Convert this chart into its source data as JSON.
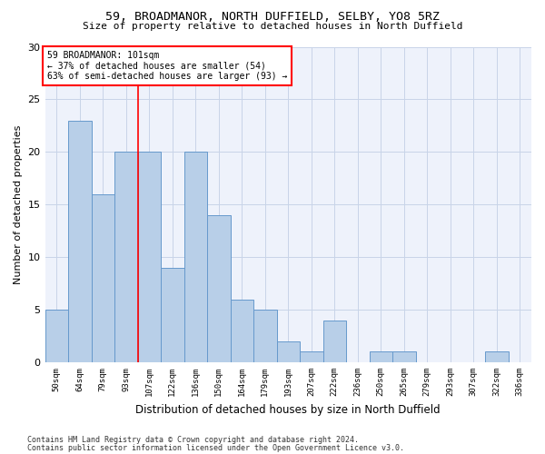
{
  "title1": "59, BROADMANOR, NORTH DUFFIELD, SELBY, YO8 5RZ",
  "title2": "Size of property relative to detached houses in North Duffield",
  "xlabel": "Distribution of detached houses by size in North Duffield",
  "ylabel": "Number of detached properties",
  "categories": [
    "50sqm",
    "64sqm",
    "79sqm",
    "93sqm",
    "107sqm",
    "122sqm",
    "136sqm",
    "150sqm",
    "164sqm",
    "179sqm",
    "193sqm",
    "207sqm",
    "222sqm",
    "236sqm",
    "250sqm",
    "265sqm",
    "279sqm",
    "293sqm",
    "307sqm",
    "322sqm",
    "336sqm"
  ],
  "values": [
    5,
    23,
    16,
    20,
    20,
    9,
    20,
    14,
    6,
    5,
    2,
    1,
    4,
    0,
    1,
    1,
    0,
    0,
    0,
    1,
    0
  ],
  "bar_color": "#b8cfe8",
  "bar_edge_color": "#6699cc",
  "ylim": [
    0,
    30
  ],
  "yticks": [
    0,
    5,
    10,
    15,
    20,
    25,
    30
  ],
  "annotation_line1": "59 BROADMANOR: 101sqm",
  "annotation_line2": "← 37% of detached houses are smaller (54)",
  "annotation_line3": "63% of semi-detached houses are larger (93) →",
  "vline_position": 3.5,
  "footer1": "Contains HM Land Registry data © Crown copyright and database right 2024.",
  "footer2": "Contains public sector information licensed under the Open Government Licence v3.0.",
  "background_color": "#eef2fb",
  "grid_color": "#c8d4e8"
}
